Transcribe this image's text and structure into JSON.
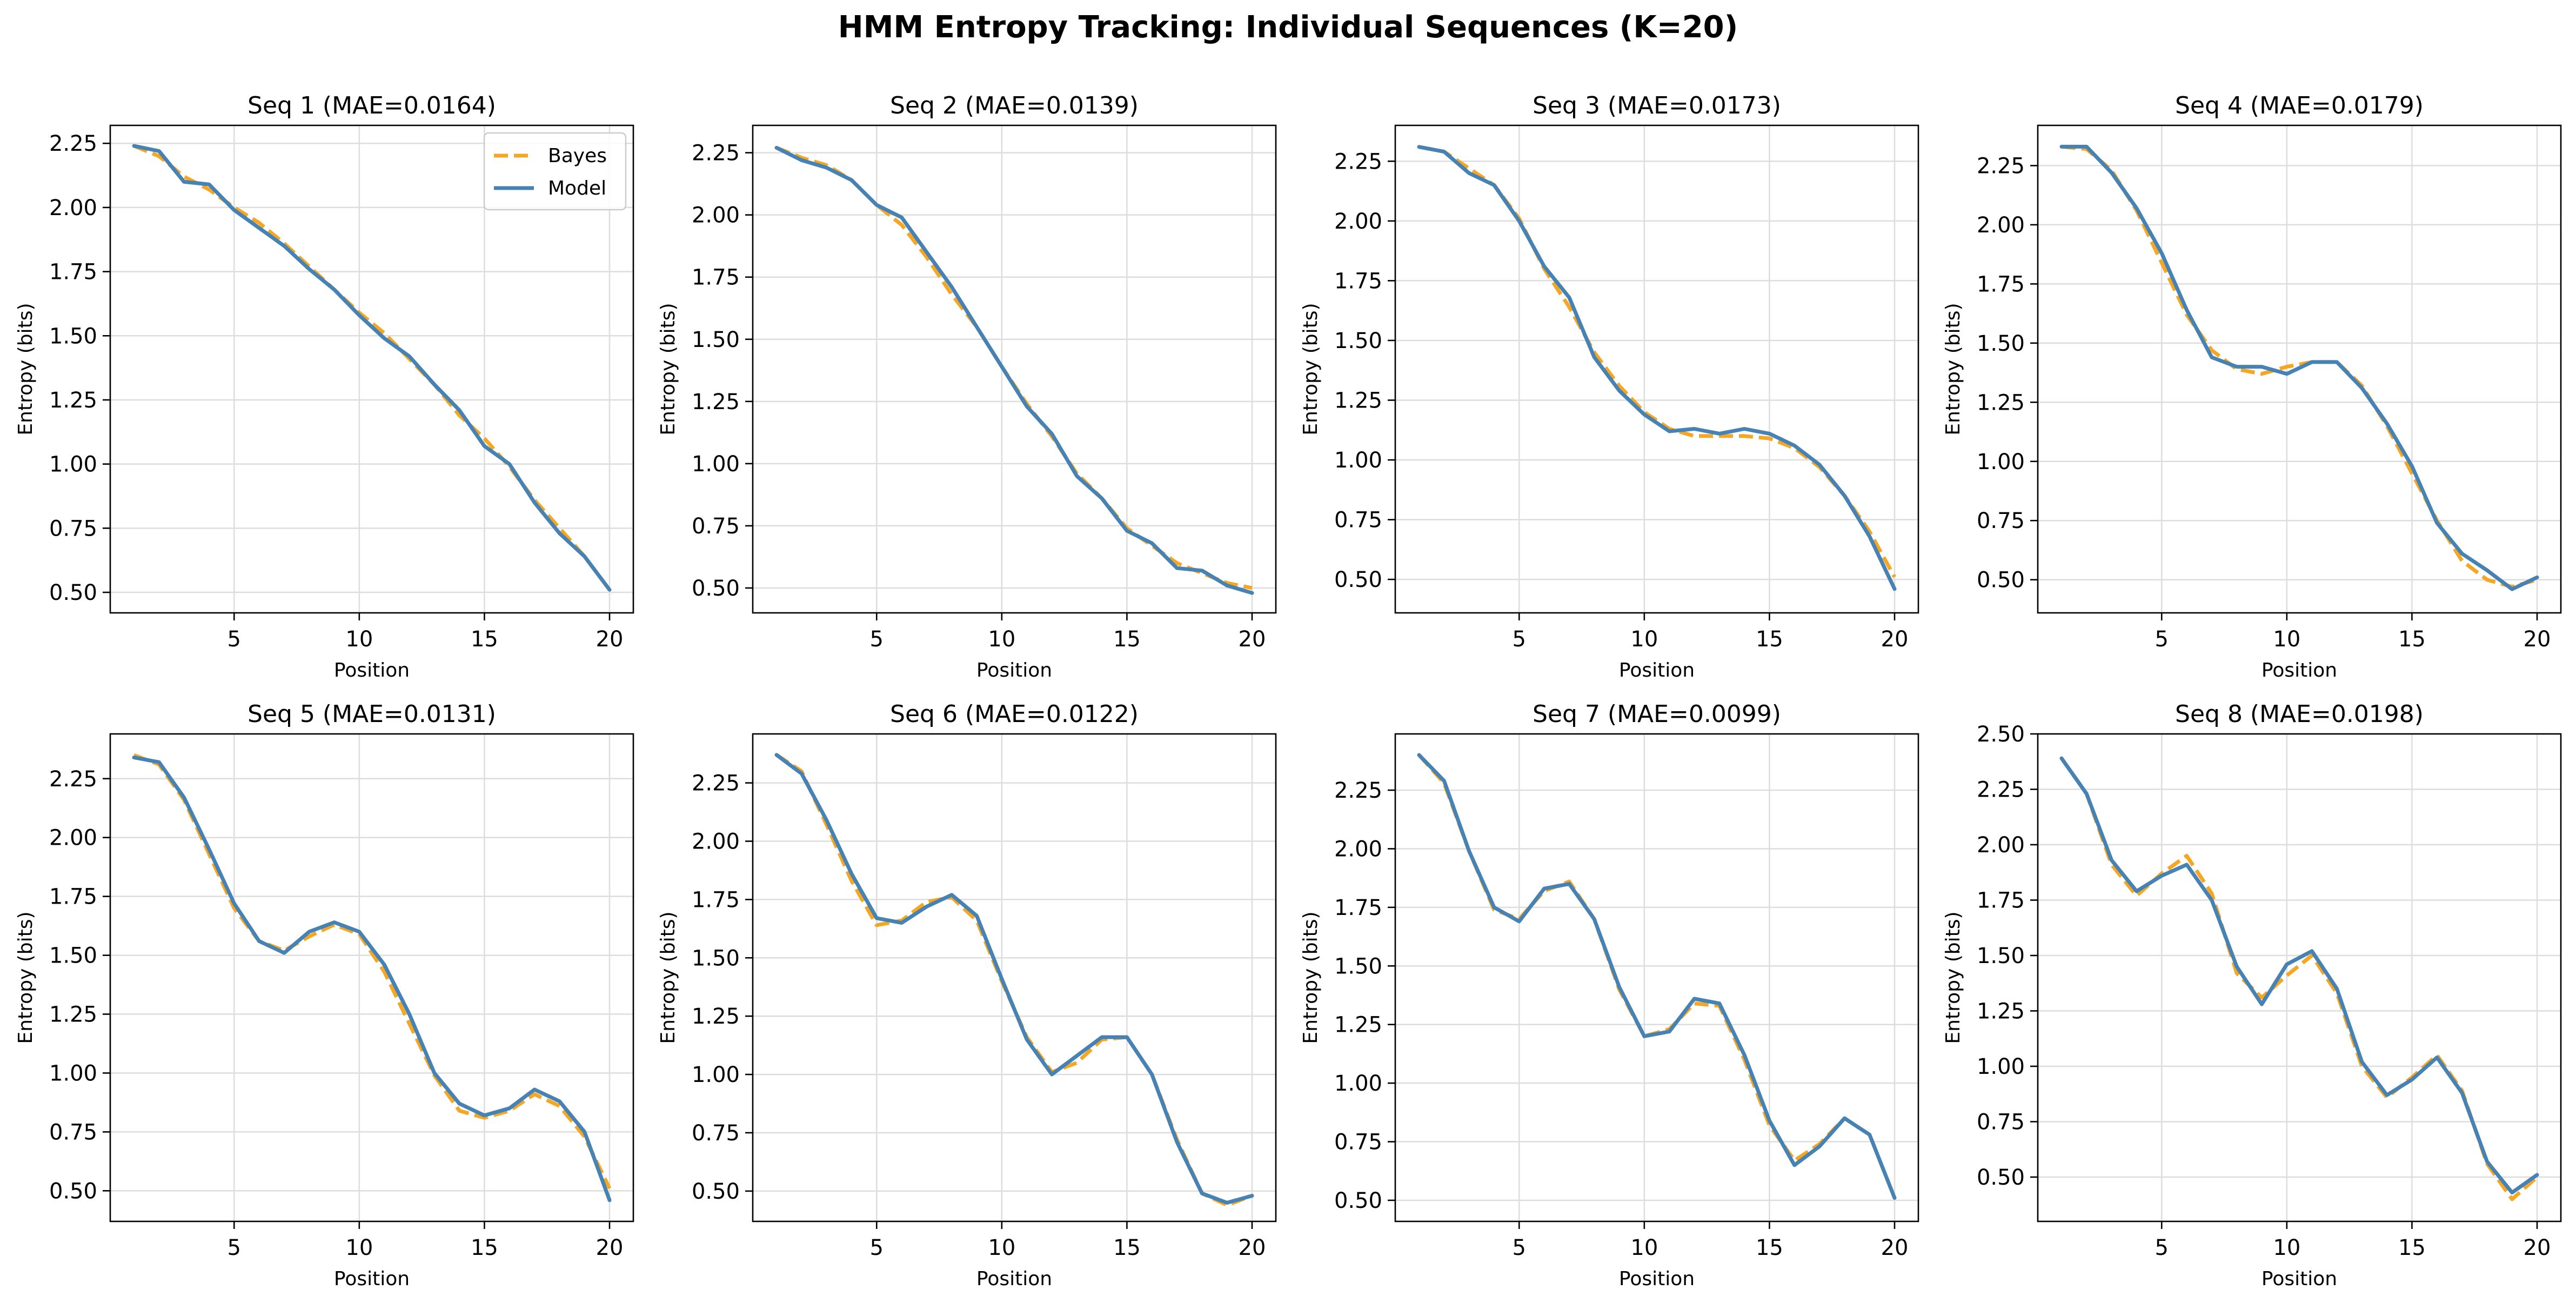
{
  "figure": {
    "title": "HMM Entropy Tracking: Individual Sequences (K=20)",
    "colors": {
      "bayes": "#F5A623",
      "model": "#4682B4",
      "grid": "#DDDDDD",
      "axis": "#000000"
    }
  },
  "legend": {
    "bayes_label": "Bayes",
    "model_label": "Model",
    "placement": "top-right",
    "shown_in_panel": 0
  },
  "chart_data": [
    {
      "type": "line",
      "title": "Seq 1 (MAE=0.0164)",
      "xlabel": "Position",
      "ylabel": "Entropy (bits)",
      "xlim": [
        0.05,
        20.95
      ],
      "ylim": [
        0.42,
        2.32
      ],
      "xticks": [
        5,
        10,
        15,
        20
      ],
      "yticks": [
        0.5,
        0.75,
        1.0,
        1.25,
        1.5,
        1.75,
        2.0,
        2.25
      ],
      "ytick_labels": [
        "0.50",
        "0.75",
        "1.00",
        "1.25",
        "1.50",
        "1.75",
        "2.00",
        "2.25"
      ],
      "x": [
        1,
        2,
        3,
        4,
        5,
        6,
        7,
        8,
        9,
        10,
        11,
        12,
        13,
        14,
        15,
        16,
        17,
        18,
        19,
        20
      ],
      "series": [
        {
          "name": "Bayes",
          "values": [
            2.24,
            2.2,
            2.12,
            2.07,
            2.0,
            1.94,
            1.86,
            1.77,
            1.68,
            1.59,
            1.51,
            1.41,
            1.31,
            1.19,
            1.1,
            0.99,
            0.86,
            0.75,
            0.64,
            0.51
          ]
        },
        {
          "name": "Model",
          "values": [
            2.24,
            2.22,
            2.1,
            2.09,
            1.99,
            1.92,
            1.85,
            1.76,
            1.68,
            1.58,
            1.49,
            1.42,
            1.31,
            1.21,
            1.07,
            1.0,
            0.85,
            0.73,
            0.64,
            0.51
          ]
        }
      ]
    },
    {
      "type": "line",
      "title": "Seq 2 (MAE=0.0139)",
      "xlabel": "Position",
      "ylabel": "Entropy (bits)",
      "xlim": [
        0.05,
        20.95
      ],
      "ylim": [
        0.4,
        2.36
      ],
      "xticks": [
        5,
        10,
        15,
        20
      ],
      "yticks": [
        0.5,
        0.75,
        1.0,
        1.25,
        1.5,
        1.75,
        2.0,
        2.25
      ],
      "ytick_labels": [
        "0.50",
        "0.75",
        "1.00",
        "1.25",
        "1.50",
        "1.75",
        "2.00",
        "2.25"
      ],
      "x": [
        1,
        2,
        3,
        4,
        5,
        6,
        7,
        8,
        9,
        10,
        11,
        12,
        13,
        14,
        15,
        16,
        17,
        18,
        19,
        20
      ],
      "series": [
        {
          "name": "Bayes",
          "values": [
            2.27,
            2.23,
            2.2,
            2.14,
            2.04,
            1.96,
            1.83,
            1.68,
            1.55,
            1.39,
            1.24,
            1.11,
            0.96,
            0.86,
            0.74,
            0.67,
            0.6,
            0.56,
            0.52,
            0.5
          ]
        },
        {
          "name": "Model",
          "values": [
            2.27,
            2.22,
            2.19,
            2.14,
            2.04,
            1.99,
            1.85,
            1.71,
            1.55,
            1.39,
            1.23,
            1.12,
            0.95,
            0.86,
            0.73,
            0.68,
            0.58,
            0.57,
            0.51,
            0.48
          ]
        }
      ]
    },
    {
      "type": "line",
      "title": "Seq 3 (MAE=0.0173)",
      "xlabel": "Position",
      "ylabel": "Entropy (bits)",
      "xlim": [
        0.05,
        20.95
      ],
      "ylim": [
        0.36,
        2.4
      ],
      "xticks": [
        5,
        10,
        15,
        20
      ],
      "yticks": [
        0.5,
        0.75,
        1.0,
        1.25,
        1.5,
        1.75,
        2.0,
        2.25
      ],
      "ytick_labels": [
        "0.50",
        "0.75",
        "1.00",
        "1.25",
        "1.50",
        "1.75",
        "2.00",
        "2.25"
      ],
      "x": [
        1,
        2,
        3,
        4,
        5,
        6,
        7,
        8,
        9,
        10,
        11,
        12,
        13,
        14,
        15,
        16,
        17,
        18,
        19,
        20
      ],
      "series": [
        {
          "name": "Bayes",
          "values": [
            2.31,
            2.29,
            2.22,
            2.15,
            2.01,
            1.8,
            1.64,
            1.45,
            1.31,
            1.2,
            1.13,
            1.1,
            1.1,
            1.1,
            1.09,
            1.05,
            0.97,
            0.85,
            0.7,
            0.51
          ]
        },
        {
          "name": "Model",
          "values": [
            2.31,
            2.29,
            2.2,
            2.15,
            2.0,
            1.81,
            1.68,
            1.43,
            1.29,
            1.19,
            1.12,
            1.13,
            1.11,
            1.13,
            1.11,
            1.06,
            0.98,
            0.85,
            0.68,
            0.46
          ]
        }
      ]
    },
    {
      "type": "line",
      "title": "Seq 4 (MAE=0.0179)",
      "xlabel": "Position",
      "ylabel": "Entropy (bits)",
      "xlim": [
        0.05,
        20.95
      ],
      "ylim": [
        0.36,
        2.42
      ],
      "xticks": [
        5,
        10,
        15,
        20
      ],
      "yticks": [
        0.5,
        0.75,
        1.0,
        1.25,
        1.5,
        1.75,
        2.0,
        2.25
      ],
      "ytick_labels": [
        "0.50",
        "0.75",
        "1.00",
        "1.25",
        "1.50",
        "1.75",
        "2.00",
        "2.25"
      ],
      "x": [
        1,
        2,
        3,
        4,
        5,
        6,
        7,
        8,
        9,
        10,
        11,
        12,
        13,
        14,
        15,
        16,
        17,
        18,
        19,
        20
      ],
      "series": [
        {
          "name": "Bayes",
          "values": [
            2.33,
            2.32,
            2.23,
            2.06,
            1.84,
            1.62,
            1.47,
            1.39,
            1.37,
            1.4,
            1.42,
            1.42,
            1.32,
            1.15,
            0.95,
            0.75,
            0.58,
            0.5,
            0.47,
            0.5
          ]
        },
        {
          "name": "Model",
          "values": [
            2.33,
            2.33,
            2.22,
            2.07,
            1.88,
            1.64,
            1.44,
            1.4,
            1.4,
            1.37,
            1.42,
            1.42,
            1.31,
            1.16,
            0.98,
            0.74,
            0.61,
            0.54,
            0.46,
            0.51
          ]
        }
      ]
    },
    {
      "type": "line",
      "title": "Seq 5 (MAE=0.0131)",
      "xlabel": "Position",
      "ylabel": "Entropy (bits)",
      "xlim": [
        0.05,
        20.95
      ],
      "ylim": [
        0.37,
        2.44
      ],
      "xticks": [
        5,
        10,
        15,
        20
      ],
      "yticks": [
        0.5,
        0.75,
        1.0,
        1.25,
        1.5,
        1.75,
        2.0,
        2.25
      ],
      "ytick_labels": [
        "0.50",
        "0.75",
        "1.00",
        "1.25",
        "1.50",
        "1.75",
        "2.00",
        "2.25"
      ],
      "x": [
        1,
        2,
        3,
        4,
        5,
        6,
        7,
        8,
        9,
        10,
        11,
        12,
        13,
        14,
        15,
        16,
        17,
        18,
        19,
        20
      ],
      "series": [
        {
          "name": "Bayes",
          "values": [
            2.35,
            2.31,
            2.16,
            1.93,
            1.7,
            1.56,
            1.52,
            1.58,
            1.63,
            1.59,
            1.43,
            1.21,
            0.99,
            0.84,
            0.81,
            0.84,
            0.91,
            0.86,
            0.73,
            0.51
          ]
        },
        {
          "name": "Model",
          "values": [
            2.34,
            2.32,
            2.17,
            1.95,
            1.72,
            1.56,
            1.51,
            1.6,
            1.64,
            1.6,
            1.46,
            1.25,
            1.0,
            0.87,
            0.82,
            0.85,
            0.93,
            0.88,
            0.75,
            0.46
          ]
        }
      ]
    },
    {
      "type": "line",
      "title": "Seq 6 (MAE=0.0122)",
      "xlabel": "Position",
      "ylabel": "Entropy (bits)",
      "xlim": [
        0.05,
        20.95
      ],
      "ylim": [
        0.37,
        2.46
      ],
      "xticks": [
        5,
        10,
        15,
        20
      ],
      "yticks": [
        0.5,
        0.75,
        1.0,
        1.25,
        1.5,
        1.75,
        2.0,
        2.25
      ],
      "ytick_labels": [
        "0.50",
        "0.75",
        "1.00",
        "1.25",
        "1.50",
        "1.75",
        "2.00",
        "2.25"
      ],
      "x": [
        1,
        2,
        3,
        4,
        5,
        6,
        7,
        8,
        9,
        10,
        11,
        12,
        13,
        14,
        15,
        16,
        17,
        18,
        19,
        20
      ],
      "series": [
        {
          "name": "Bayes",
          "values": [
            2.37,
            2.3,
            2.07,
            1.83,
            1.64,
            1.66,
            1.74,
            1.76,
            1.66,
            1.4,
            1.16,
            1.01,
            1.05,
            1.15,
            1.16,
            1.0,
            0.72,
            0.49,
            0.44,
            0.48
          ]
        },
        {
          "name": "Model",
          "values": [
            2.37,
            2.29,
            2.09,
            1.86,
            1.67,
            1.65,
            1.72,
            1.77,
            1.68,
            1.41,
            1.15,
            1.0,
            1.08,
            1.16,
            1.16,
            1.0,
            0.71,
            0.49,
            0.45,
            0.48
          ]
        }
      ]
    },
    {
      "type": "line",
      "title": "Seq 7 (MAE=0.0099)",
      "xlabel": "Position",
      "ylabel": "Entropy (bits)",
      "xlim": [
        0.05,
        20.95
      ],
      "ylim": [
        0.41,
        2.49
      ],
      "xticks": [
        5,
        10,
        15,
        20
      ],
      "yticks": [
        0.5,
        0.75,
        1.0,
        1.25,
        1.5,
        1.75,
        2.0,
        2.25
      ],
      "ytick_labels": [
        "0.50",
        "0.75",
        "1.00",
        "1.25",
        "1.50",
        "1.75",
        "2.00",
        "2.25"
      ],
      "x": [
        1,
        2,
        3,
        4,
        5,
        6,
        7,
        8,
        9,
        10,
        11,
        12,
        13,
        14,
        15,
        16,
        17,
        18,
        19,
        20
      ],
      "series": [
        {
          "name": "Bayes",
          "values": [
            2.4,
            2.28,
            1.99,
            1.74,
            1.7,
            1.82,
            1.86,
            1.7,
            1.4,
            1.2,
            1.23,
            1.34,
            1.33,
            1.1,
            0.82,
            0.67,
            0.74,
            0.85,
            0.78,
            0.51
          ]
        },
        {
          "name": "Model",
          "values": [
            2.4,
            2.29,
            1.99,
            1.75,
            1.69,
            1.83,
            1.85,
            1.7,
            1.41,
            1.2,
            1.22,
            1.36,
            1.34,
            1.12,
            0.84,
            0.65,
            0.73,
            0.85,
            0.78,
            0.51
          ]
        }
      ]
    },
    {
      "type": "line",
      "title": "Seq 8 (MAE=0.0198)",
      "xlabel": "Position",
      "ylabel": "Entropy (bits)",
      "xlim": [
        0.05,
        20.95
      ],
      "ylim": [
        0.3,
        2.5
      ],
      "xticks": [
        5,
        10,
        15,
        20
      ],
      "yticks": [
        0.5,
        0.75,
        1.0,
        1.25,
        1.5,
        1.75,
        2.0,
        2.25,
        2.5
      ],
      "ytick_labels": [
        "0.50",
        "0.75",
        "1.00",
        "1.25",
        "1.50",
        "1.75",
        "2.00",
        "2.25",
        "2.50"
      ],
      "x": [
        1,
        2,
        3,
        4,
        5,
        6,
        7,
        8,
        9,
        10,
        11,
        12,
        13,
        14,
        15,
        16,
        17,
        18,
        19,
        20
      ],
      "series": [
        {
          "name": "Bayes",
          "values": [
            2.39,
            2.23,
            1.91,
            1.77,
            1.87,
            1.95,
            1.78,
            1.42,
            1.31,
            1.41,
            1.5,
            1.33,
            1.0,
            0.86,
            0.95,
            1.05,
            0.89,
            0.56,
            0.4,
            0.5
          ]
        },
        {
          "name": "Model",
          "values": [
            2.39,
            2.23,
            1.93,
            1.79,
            1.86,
            1.91,
            1.75,
            1.45,
            1.28,
            1.46,
            1.52,
            1.35,
            1.02,
            0.87,
            0.94,
            1.04,
            0.88,
            0.57,
            0.43,
            0.51
          ]
        }
      ]
    }
  ]
}
